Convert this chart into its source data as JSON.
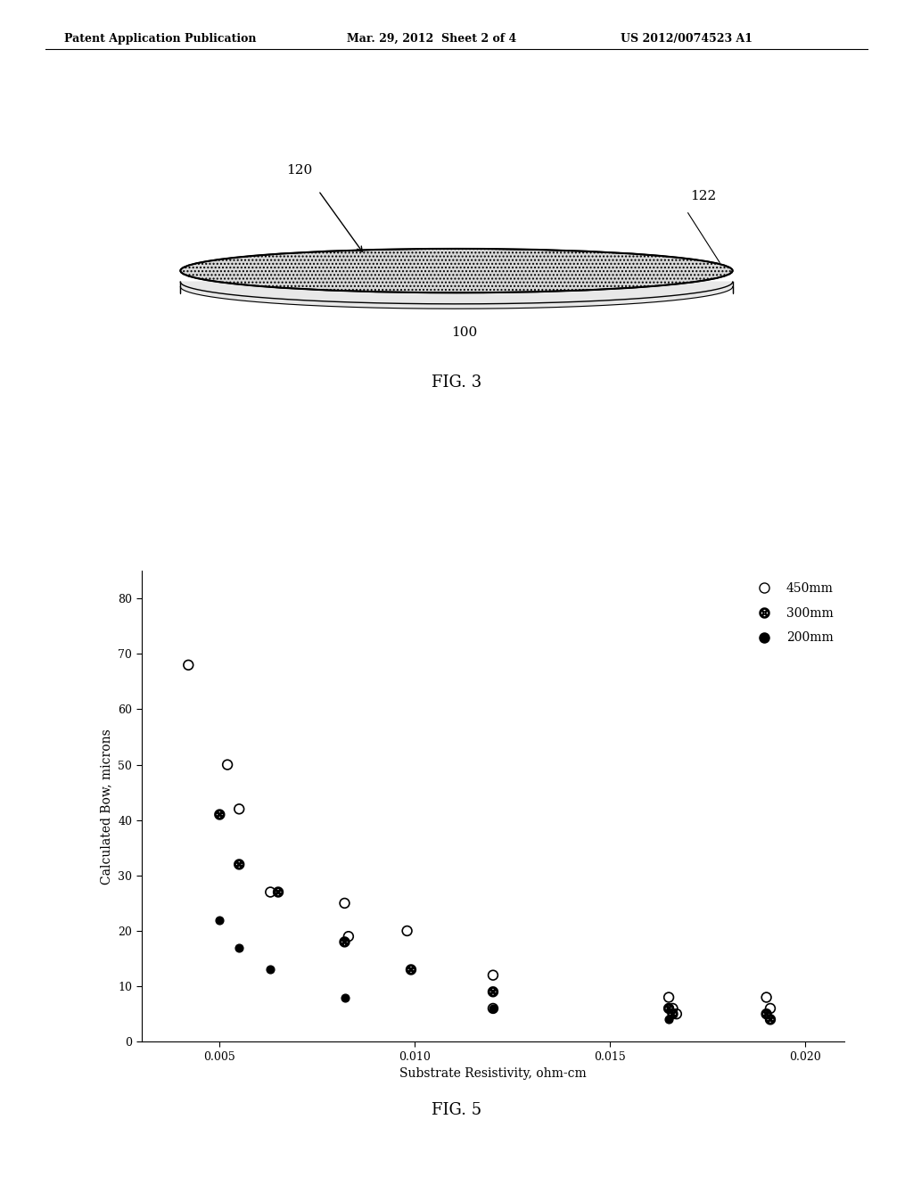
{
  "header_left": "Patent Application Publication",
  "header_mid": "Mar. 29, 2012  Sheet 2 of 4",
  "header_right": "US 2012/0074523 A1",
  "fig3_label": "FIG. 3",
  "fig5_label": "FIG. 5",
  "wafer_label_120": "120",
  "wafer_label_122": "122",
  "wafer_label_100": "100",
  "xlabel": "Substrate Resistivity, ohm-cm",
  "ylabel": "Calculated Bow, microns",
  "xlim": [
    0.003,
    0.021
  ],
  "ylim": [
    0,
    85
  ],
  "xticks": [
    0.005,
    0.01,
    0.015,
    0.02
  ],
  "yticks": [
    0,
    10,
    20,
    30,
    40,
    50,
    60,
    70,
    80
  ],
  "legend_450mm": "450mm",
  "legend_300mm": "300mm",
  "legend_200mm": "200mm",
  "data_450mm": {
    "x": [
      0.0042,
      0.0052,
      0.0055,
      0.0063,
      0.0082,
      0.0083,
      0.0098,
      0.012,
      0.012,
      0.0165,
      0.0166,
      0.0167,
      0.019,
      0.0191
    ],
    "y": [
      68,
      50,
      42,
      27,
      25,
      19,
      20,
      12,
      6,
      8,
      6,
      5,
      8,
      6
    ]
  },
  "data_300mm": {
    "x": [
      0.005,
      0.0055,
      0.0065,
      0.0082,
      0.0099,
      0.012,
      0.0165,
      0.0166,
      0.019,
      0.0191
    ],
    "y": [
      41,
      32,
      27,
      18,
      13,
      9,
      6,
      5,
      5,
      4
    ]
  },
  "data_200mm": {
    "x": [
      0.005,
      0.0055,
      0.0063,
      0.0082,
      0.012,
      0.0165
    ],
    "y": [
      22,
      17,
      13,
      8,
      6,
      4
    ]
  },
  "background_color": "#ffffff",
  "marker_size_large": 60,
  "marker_size_small": 40
}
